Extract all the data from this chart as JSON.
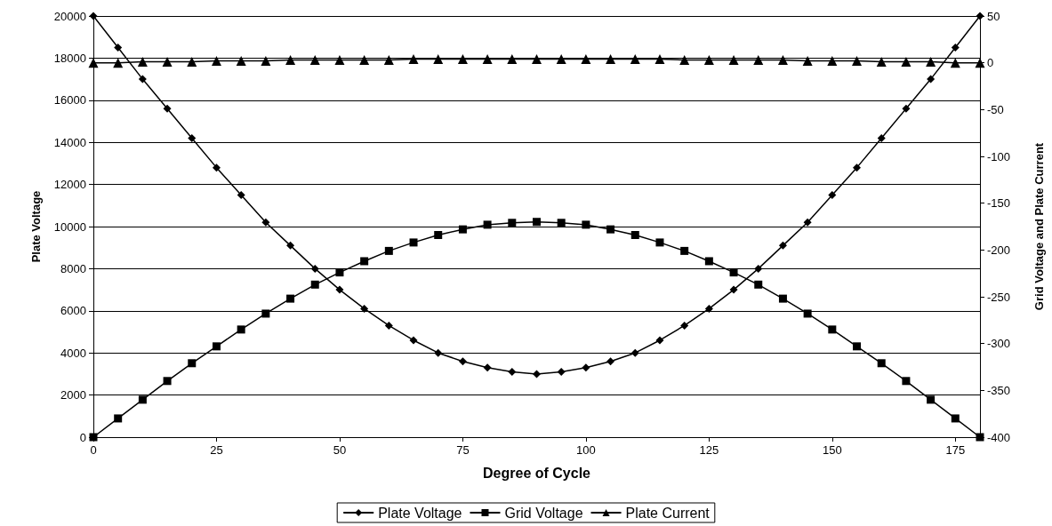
{
  "chart_data": {
    "type": "line",
    "xlabel": "Degree of Cycle",
    "ylabel": "Plate Voltage",
    "y2label": "Grid Voltage and Plate Current",
    "x": [
      0,
      5,
      10,
      15,
      20,
      25,
      30,
      35,
      40,
      45,
      50,
      55,
      60,
      65,
      70,
      75,
      80,
      85,
      90,
      95,
      100,
      105,
      110,
      115,
      120,
      125,
      130,
      135,
      140,
      145,
      150,
      155,
      160,
      165,
      170,
      175,
      180
    ],
    "xlim": [
      0,
      180
    ],
    "xticks": [
      0,
      25,
      50,
      75,
      100,
      125,
      150,
      175
    ],
    "ylim": [
      0,
      20000
    ],
    "yticks": [
      0,
      2000,
      4000,
      6000,
      8000,
      10000,
      12000,
      14000,
      16000,
      18000,
      20000
    ],
    "y2lim": [
      -400,
      50
    ],
    "y2ticks": [
      -400,
      -350,
      -300,
      -250,
      -200,
      -150,
      -100,
      -50,
      0,
      50
    ],
    "grid": "y",
    "legend": "bottom",
    "line_style": "solid",
    "series": [
      {
        "name": "Plate Voltage",
        "color": "#000000",
        "marker": "diamond",
        "values": [
          20000,
          18500,
          17000,
          15600,
          14200,
          12800,
          11500,
          10200,
          9100,
          8000,
          7000,
          6100,
          5300,
          4600,
          4000,
          3600,
          3300,
          3100,
          3000,
          3100,
          3300,
          3600,
          4000,
          4600,
          5300,
          6100,
          7000,
          8000,
          9100,
          10200,
          11500,
          12800,
          14200,
          15600,
          17000,
          18500,
          20000
        ]
      },
      {
        "name": "Grid Voltage",
        "color": "#000000",
        "marker": "square",
        "axis": "y2",
        "values": [
          -400,
          -380,
          -360,
          -340,
          -321,
          -303,
          -285,
          -268,
          -252,
          -237,
          -224,
          -212,
          -201,
          -192,
          -184,
          -178,
          -173,
          -171,
          -170,
          -171,
          -173,
          -178,
          -184,
          -192,
          -201,
          -212,
          -224,
          -237,
          -252,
          -268,
          -285,
          -303,
          -321,
          -340,
          -360,
          -380,
          -400
        ]
      },
      {
        "name": "Plate Current",
        "color": "#000000",
        "marker": "triangle",
        "axis": "y2",
        "values": [
          0,
          0,
          1,
          1,
          1,
          2,
          2,
          2,
          3,
          3,
          3,
          3,
          3,
          4,
          4,
          4,
          4,
          4,
          4,
          4,
          4,
          4,
          4,
          4,
          3,
          3,
          3,
          3,
          3,
          2,
          2,
          2,
          1,
          1,
          1,
          0,
          0
        ]
      }
    ]
  }
}
